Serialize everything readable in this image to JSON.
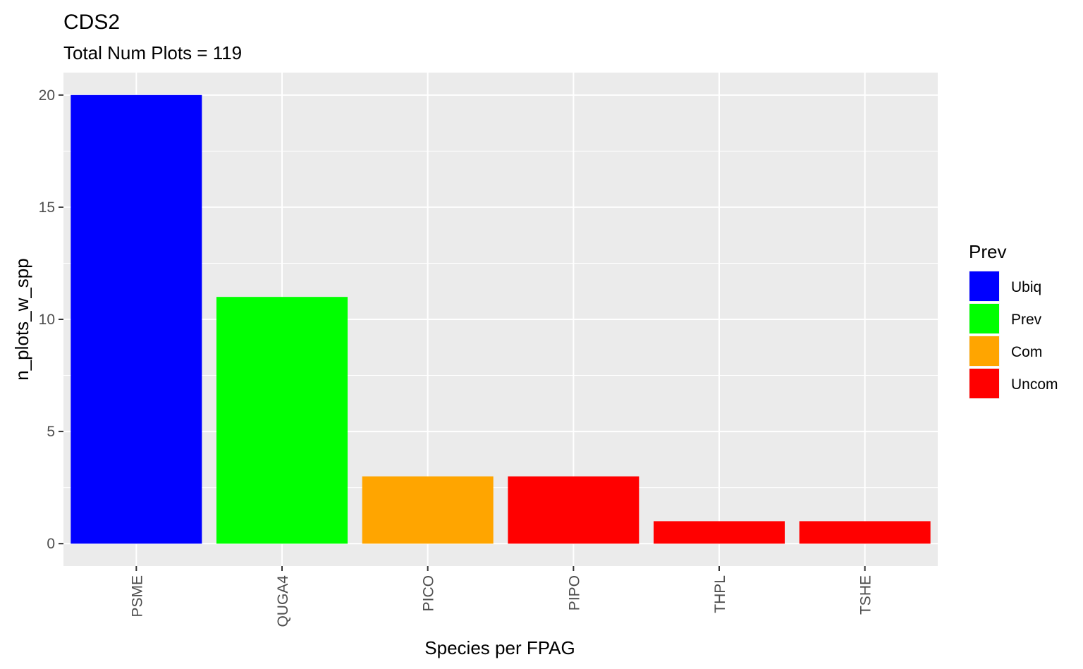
{
  "chart_data": {
    "type": "bar",
    "title": "CDS2",
    "subtitle": "Total Num Plots = 119",
    "xlabel": "Species per FPAG",
    "ylabel": "n_plots_w_spp",
    "categories": [
      "PSME",
      "QUGA4",
      "PICO",
      "PIPO",
      "THPL",
      "TSHE"
    ],
    "values": [
      20,
      11,
      3,
      3,
      1,
      1
    ],
    "bar_groups": [
      "Ubiq",
      "Prev",
      "Com",
      "Uncom",
      "Uncom",
      "Uncom"
    ],
    "yticks": [
      0,
      5,
      10,
      15,
      20
    ],
    "ylim": [
      -1,
      21
    ],
    "grid": true,
    "legend": {
      "title": "Prev",
      "position": "right",
      "entries": [
        {
          "label": "Ubiq",
          "color": "#0000FF"
        },
        {
          "label": "Prev",
          "color": "#00FF00"
        },
        {
          "label": "Com",
          "color": "#FFA500"
        },
        {
          "label": "Uncom",
          "color": "#FF0000"
        }
      ]
    },
    "colors": {
      "panel_background": "#EBEBEB",
      "grid": "#FFFFFF",
      "tick": "#333333"
    }
  }
}
